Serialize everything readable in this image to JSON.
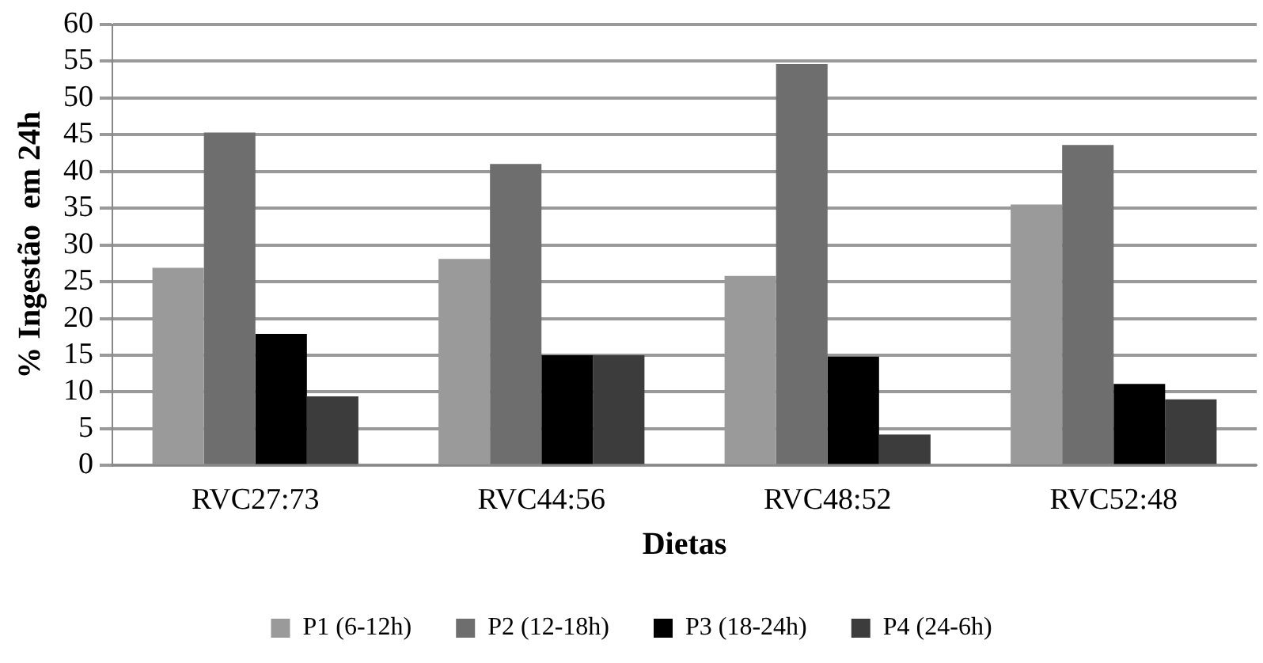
{
  "chart_data": {
    "type": "bar",
    "xlabel": "Dietas",
    "ylabel": "% Ingestão  em 24h",
    "categories": [
      "RVC27:73",
      "RVC44:56",
      "RVC48:52",
      "RVC52:48"
    ],
    "series": [
      {
        "name": "P1 (6-12h)",
        "color": "#9a9a9a",
        "values": [
          26.9,
          28.1,
          25.8,
          35.5
        ]
      },
      {
        "name": "P2 (12-18h)",
        "color": "#6e6e6e",
        "values": [
          45.3,
          41.0,
          54.6,
          43.6
        ]
      },
      {
        "name": "P3 (18-24h)",
        "color": "#000000",
        "values": [
          17.9,
          15.0,
          14.8,
          11.1
        ]
      },
      {
        "name": "P4 (24-6h)",
        "color": "#3c3c3c",
        "values": [
          9.4,
          15.0,
          4.2,
          9.0
        ]
      }
    ],
    "ylim": [
      0,
      60
    ],
    "yticks": [
      0,
      5,
      10,
      15,
      20,
      25,
      30,
      35,
      40,
      45,
      50,
      55,
      60
    ],
    "grid": "y",
    "legend": "bottom"
  }
}
